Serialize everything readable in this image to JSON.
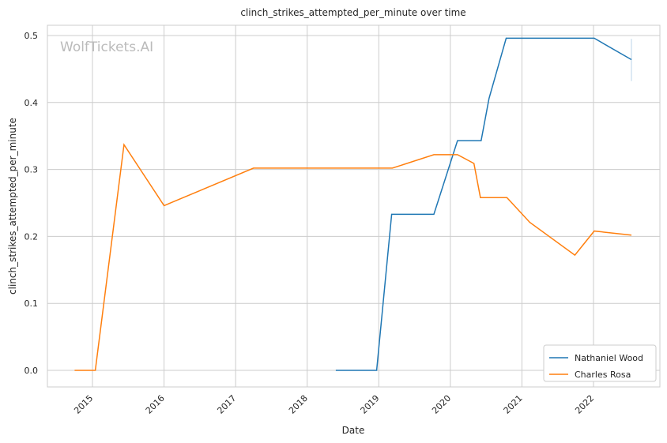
{
  "chart_data": {
    "type": "line",
    "title": "clinch_strikes_attempted_per_minute over time",
    "xlabel": "Date",
    "ylabel": "clinch_strikes_attempted_per_minute",
    "watermark": "WolfTickets.AI",
    "xlim": [
      2014.5,
      2023.0
    ],
    "ylim": [
      -0.025,
      0.52
    ],
    "x_ticks": [
      "2015",
      "2016",
      "2017",
      "2018",
      "2019",
      "2020",
      "2021",
      "2022"
    ],
    "y_ticks": [
      "0.0",
      "0.1",
      "0.2",
      "0.3",
      "0.4",
      "0.5"
    ],
    "grid": true,
    "legend_position": "bottom-right",
    "series": [
      {
        "name": "Nathaniel Wood",
        "color": "#1f77b4",
        "x": [
          2018.4,
          2018.97,
          2019.18,
          2019.77,
          2020.1,
          2020.43,
          2020.54,
          2020.78,
          2022.01,
          2022.53
        ],
        "y": [
          0,
          0,
          0.233,
          0.233,
          0.343,
          0.343,
          0.406,
          0.496,
          0.496,
          0.464
        ],
        "error_bar": {
          "x": 2022.53,
          "low": 0.432,
          "high": 0.495
        }
      },
      {
        "name": "Charles Rosa",
        "color": "#ff7f0e",
        "x": [
          2014.75,
          2015.04,
          2015.44,
          2016.0,
          2017.25,
          2019.19,
          2019.77,
          2020.1,
          2020.33,
          2020.42,
          2020.79,
          2021.11,
          2021.74,
          2022.01,
          2022.53
        ],
        "y": [
          0,
          0,
          0.337,
          0.246,
          0.302,
          0.302,
          0.322,
          0.322,
          0.309,
          0.258,
          0.258,
          0.221,
          0.172,
          0.208,
          0.202
        ]
      }
    ]
  }
}
